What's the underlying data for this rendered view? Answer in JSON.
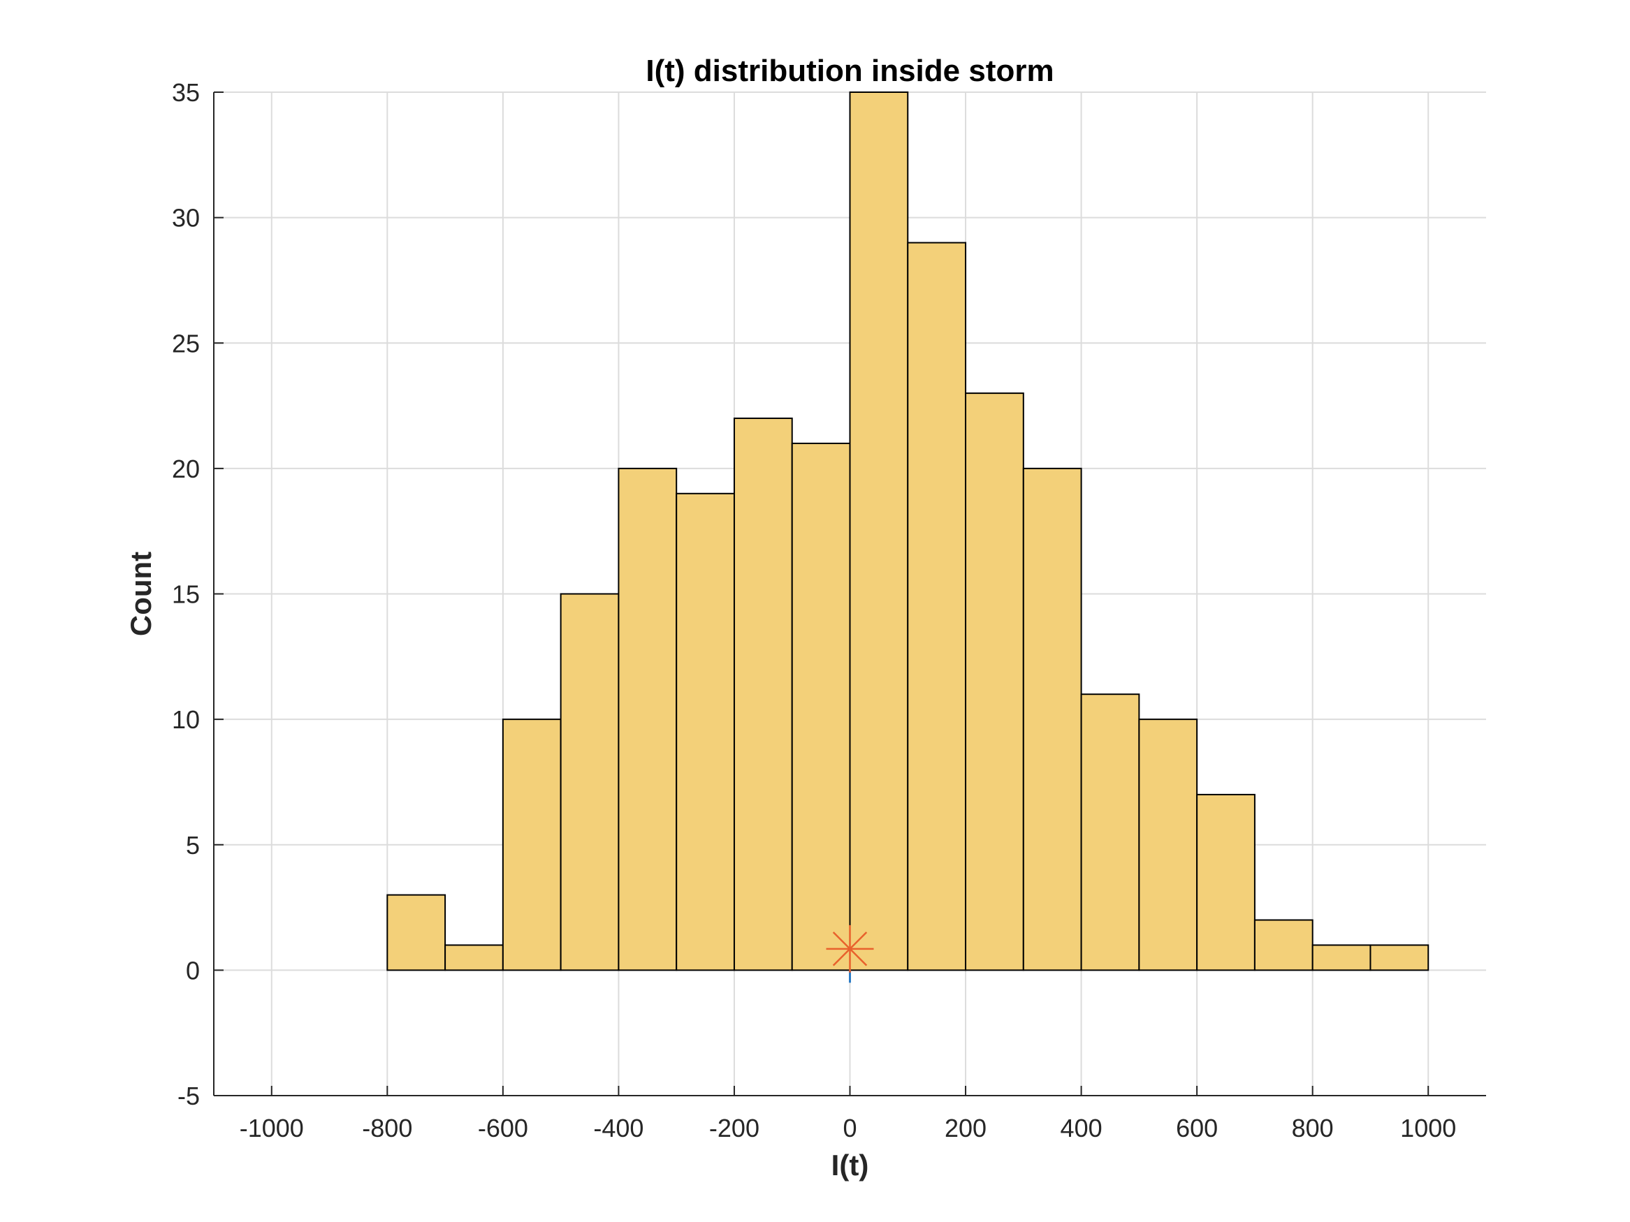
{
  "chart_data": {
    "type": "bar",
    "title": "I(t) distribution inside storm",
    "xlabel": "I(t)",
    "ylabel": "Count",
    "xlim": [
      -1100,
      1100
    ],
    "ylim": [
      -5,
      35
    ],
    "xticks": [
      -1000,
      -800,
      -600,
      -400,
      -200,
      0,
      200,
      400,
      600,
      800,
      1000
    ],
    "yticks": [
      -5,
      0,
      5,
      10,
      15,
      20,
      25,
      30,
      35
    ],
    "grid": true,
    "bin_edges": [
      -1000,
      -900,
      -800,
      -700,
      -600,
      -500,
      -400,
      -300,
      -200,
      -100,
      0,
      100,
      200,
      300,
      400,
      500,
      600,
      700,
      800,
      900,
      1000
    ],
    "counts": [
      0,
      0,
      3,
      1,
      10,
      15,
      20,
      19,
      22,
      21,
      35,
      29,
      23,
      20,
      11,
      10,
      7,
      2,
      1,
      1
    ],
    "bar_color": "#f3d079",
    "marker": {
      "x": 0,
      "y": 0.85,
      "symbol": "asterisk",
      "color": "#e8612c"
    },
    "marker_stem": {
      "x": 0,
      "y0": 0,
      "y1": -0.5,
      "color": "#2c7cc6"
    }
  }
}
